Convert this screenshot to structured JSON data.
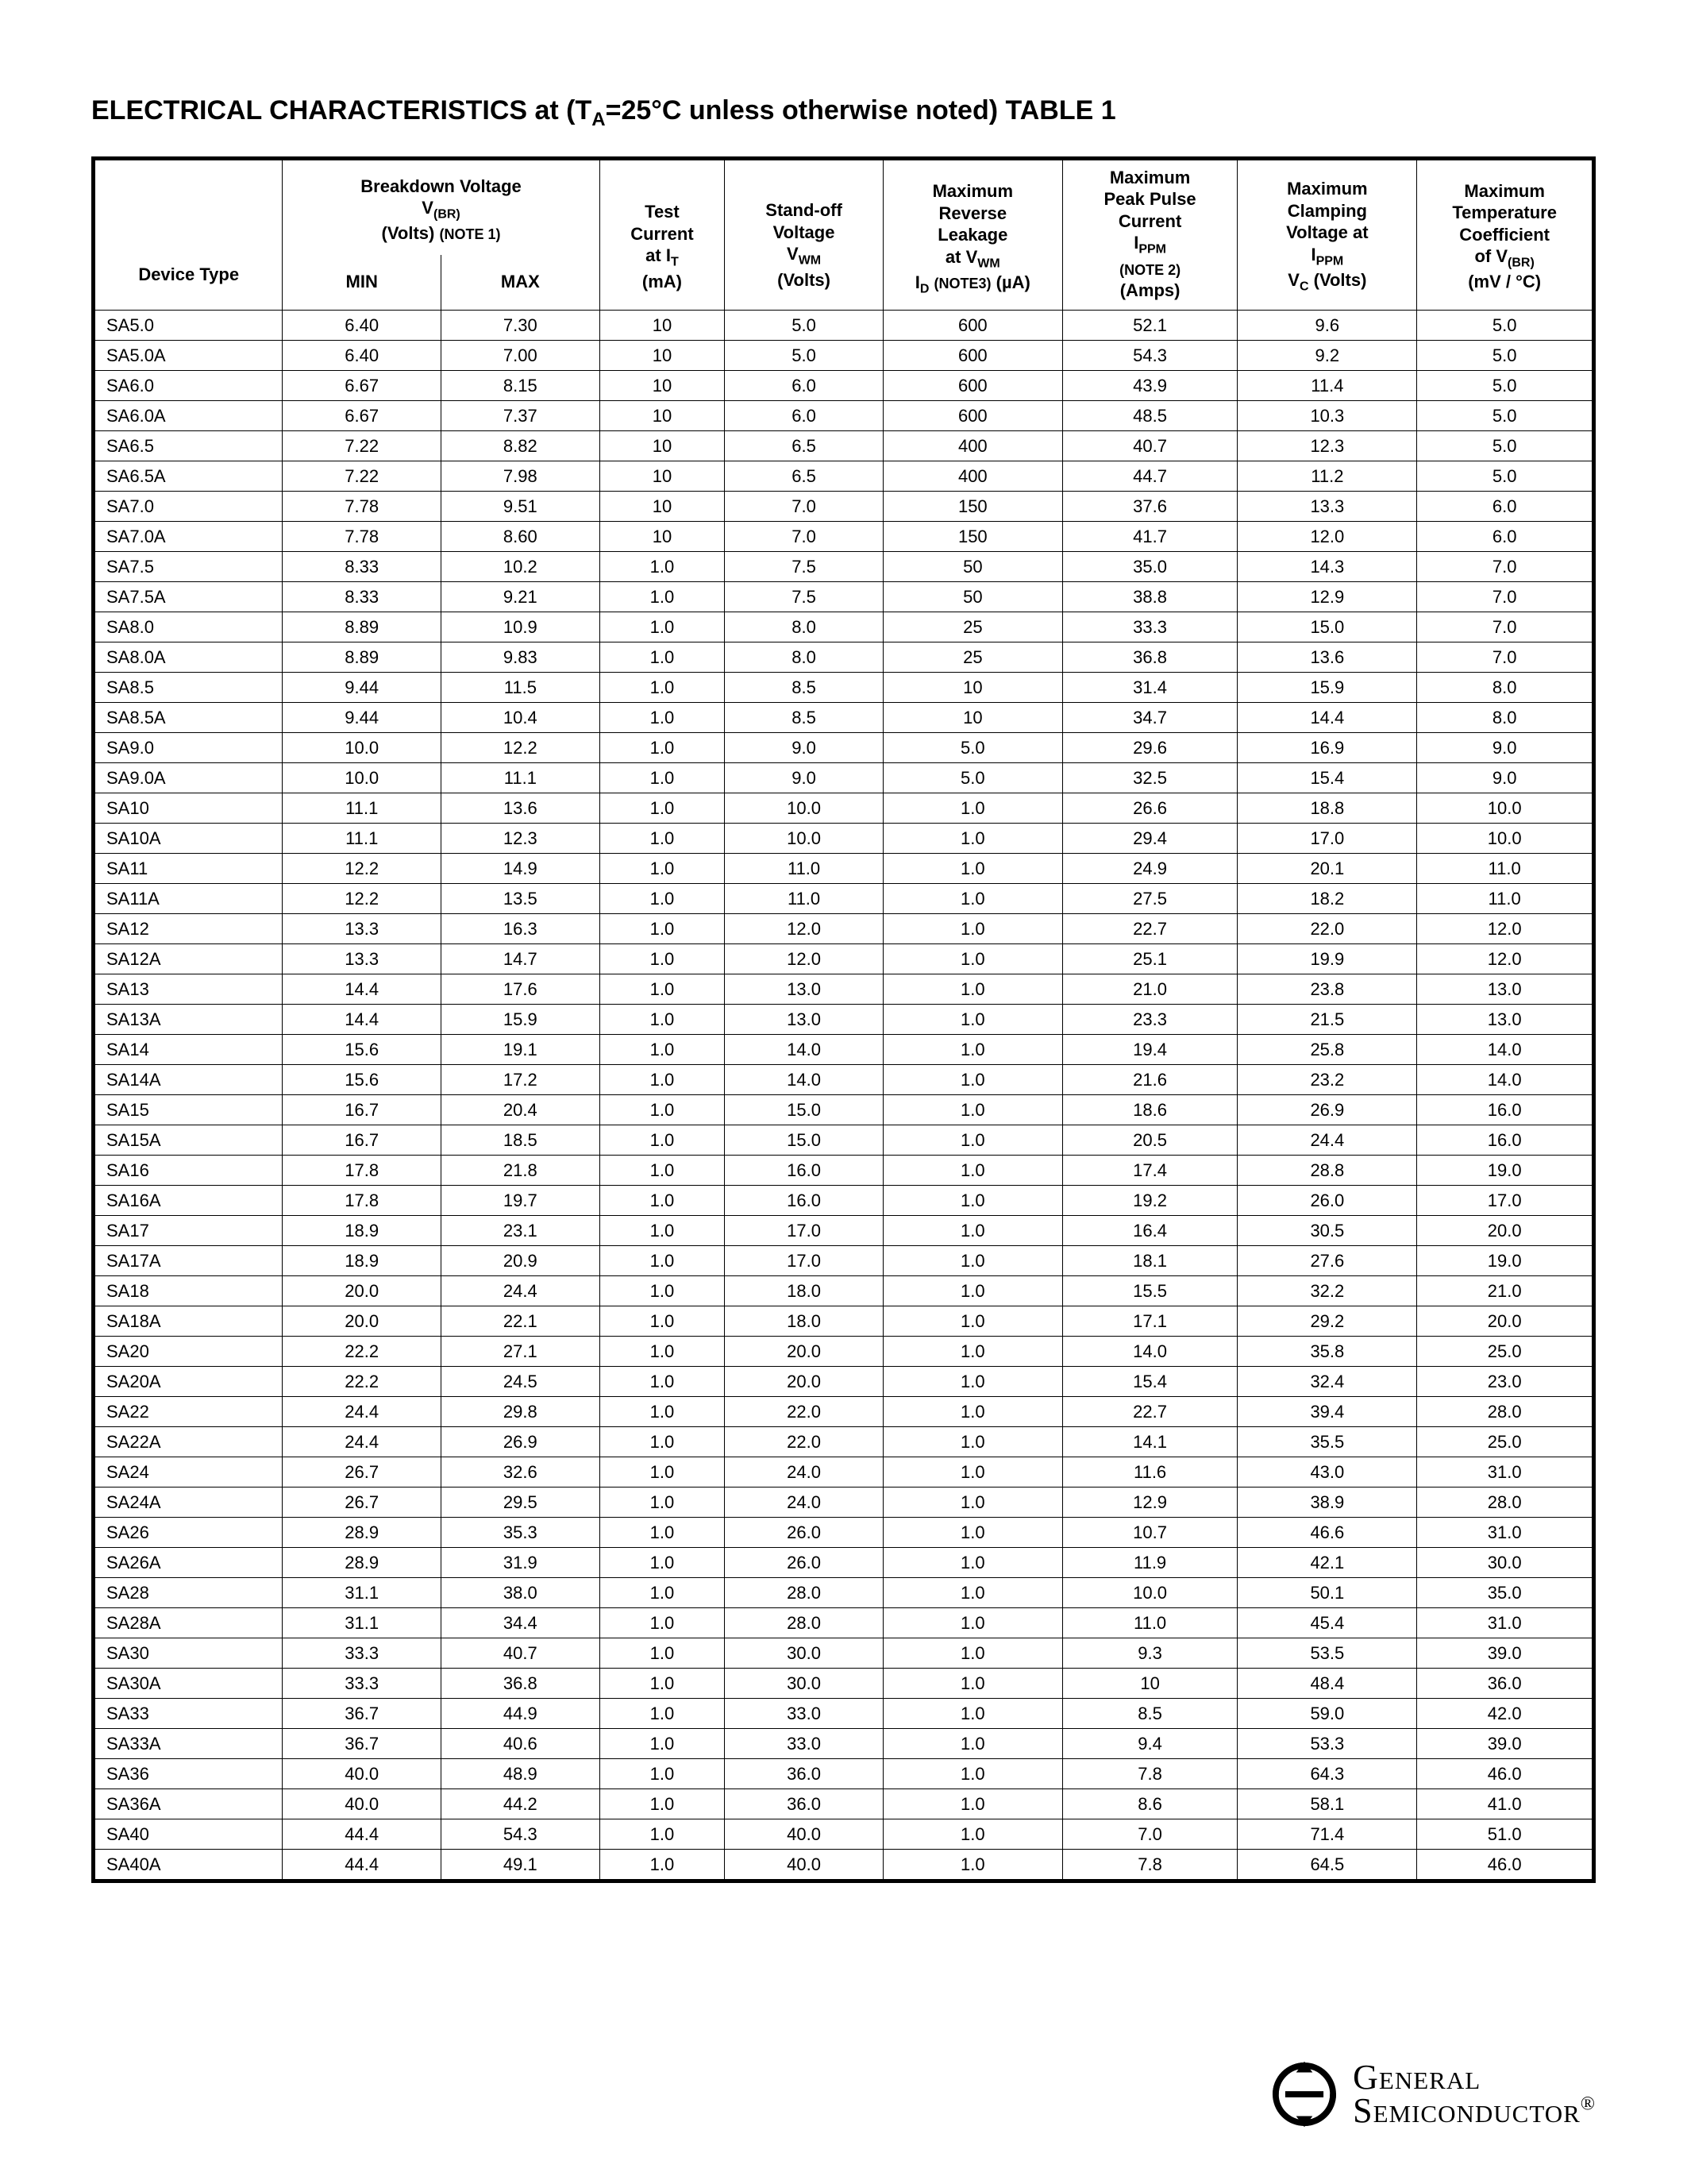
{
  "title": {
    "prefix": "ELECTRICAL CHARACTERISTICS at (T",
    "sub": "A",
    "eq": "=",
    "temp": "25°C unless otherwise noted) TABLE 1"
  },
  "header": {
    "device_type": "Device Type",
    "breakdown_top": "Breakdown Voltage",
    "breakdown_sub1": "V",
    "breakdown_sub1_sub": "(BR)",
    "breakdown_sub2": "(Volts)",
    "breakdown_note": "(NOTE 1)",
    "min": "MIN",
    "max": "MAX",
    "test_current_top": "Test\nCurrent\nat I",
    "test_current_sub": "T",
    "test_current_unit": "(mA)",
    "standoff_top": "Stand-off\nVoltage",
    "standoff_v": "V",
    "standoff_sub": "WM",
    "standoff_unit": "(Volts)",
    "leakage_top": "Maximum\nReverse\nLeakage",
    "leakage_at": "at V",
    "leakage_at_sub": "WM",
    "leakage_id": "I",
    "leakage_id_sub": "D",
    "leakage_note": "(NOTE3)",
    "leakage_unit": "(µA)",
    "ippm_top": "Maximum\nPeak Pulse\nCurrent",
    "ippm_i": "I",
    "ippm_sub": "PPM",
    "ippm_note": "(NOTE 2)",
    "ippm_unit": "(Amps)",
    "clamp_top": "Maximum\nClamping\nVoltage at",
    "clamp_i": "I",
    "clamp_sub": "PPM",
    "clamp_v": "V",
    "clamp_v_sub": "C",
    "clamp_unit": "(Volts)",
    "tc_top": "Maximum\nTemperature\nCoefficient",
    "tc_of": "of V",
    "tc_sub": "(BR)",
    "tc_unit": "(mV / °C)"
  },
  "columns": [
    "device",
    "min",
    "max",
    "it",
    "vwm",
    "id",
    "ippm",
    "vc",
    "tc"
  ],
  "rows": [
    [
      "SA5.0",
      "6.40",
      "7.30",
      "10",
      "5.0",
      "600",
      "52.1",
      "9.6",
      "5.0"
    ],
    [
      "SA5.0A",
      "6.40",
      "7.00",
      "10",
      "5.0",
      "600",
      "54.3",
      "9.2",
      "5.0"
    ],
    [
      "SA6.0",
      "6.67",
      "8.15",
      "10",
      "6.0",
      "600",
      "43.9",
      "11.4",
      "5.0"
    ],
    [
      "SA6.0A",
      "6.67",
      "7.37",
      "10",
      "6.0",
      "600",
      "48.5",
      "10.3",
      "5.0"
    ],
    [
      "SA6.5",
      "7.22",
      "8.82",
      "10",
      "6.5",
      "400",
      "40.7",
      "12.3",
      "5.0"
    ],
    [
      "SA6.5A",
      "7.22",
      "7.98",
      "10",
      "6.5",
      "400",
      "44.7",
      "11.2",
      "5.0"
    ],
    [
      "SA7.0",
      "7.78",
      "9.51",
      "10",
      "7.0",
      "150",
      "37.6",
      "13.3",
      "6.0"
    ],
    [
      "SA7.0A",
      "7.78",
      "8.60",
      "10",
      "7.0",
      "150",
      "41.7",
      "12.0",
      "6.0"
    ],
    [
      "SA7.5",
      "8.33",
      "10.2",
      "1.0",
      "7.5",
      "50",
      "35.0",
      "14.3",
      "7.0"
    ],
    [
      "SA7.5A",
      "8.33",
      "9.21",
      "1.0",
      "7.5",
      "50",
      "38.8",
      "12.9",
      "7.0"
    ],
    [
      "SA8.0",
      "8.89",
      "10.9",
      "1.0",
      "8.0",
      "25",
      "33.3",
      "15.0",
      "7.0"
    ],
    [
      "SA8.0A",
      "8.89",
      "9.83",
      "1.0",
      "8.0",
      "25",
      "36.8",
      "13.6",
      "7.0"
    ],
    [
      "SA8.5",
      "9.44",
      "11.5",
      "1.0",
      "8.5",
      "10",
      "31.4",
      "15.9",
      "8.0"
    ],
    [
      "SA8.5A",
      "9.44",
      "10.4",
      "1.0",
      "8.5",
      "10",
      "34.7",
      "14.4",
      "8.0"
    ],
    [
      "SA9.0",
      "10.0",
      "12.2",
      "1.0",
      "9.0",
      "5.0",
      "29.6",
      "16.9",
      "9.0"
    ],
    [
      "SA9.0A",
      "10.0",
      "11.1",
      "1.0",
      "9.0",
      "5.0",
      "32.5",
      "15.4",
      "9.0"
    ],
    [
      "SA10",
      "11.1",
      "13.6",
      "1.0",
      "10.0",
      "1.0",
      "26.6",
      "18.8",
      "10.0"
    ],
    [
      "SA10A",
      "11.1",
      "12.3",
      "1.0",
      "10.0",
      "1.0",
      "29.4",
      "17.0",
      "10.0"
    ],
    [
      "SA11",
      "12.2",
      "14.9",
      "1.0",
      "11.0",
      "1.0",
      "24.9",
      "20.1",
      "11.0"
    ],
    [
      "SA11A",
      "12.2",
      "13.5",
      "1.0",
      "11.0",
      "1.0",
      "27.5",
      "18.2",
      "11.0"
    ],
    [
      "SA12",
      "13.3",
      "16.3",
      "1.0",
      "12.0",
      "1.0",
      "22.7",
      "22.0",
      "12.0"
    ],
    [
      "SA12A",
      "13.3",
      "14.7",
      "1.0",
      "12.0",
      "1.0",
      "25.1",
      "19.9",
      "12.0"
    ],
    [
      "SA13",
      "14.4",
      "17.6",
      "1.0",
      "13.0",
      "1.0",
      "21.0",
      "23.8",
      "13.0"
    ],
    [
      "SA13A",
      "14.4",
      "15.9",
      "1.0",
      "13.0",
      "1.0",
      "23.3",
      "21.5",
      "13.0"
    ],
    [
      "SA14",
      "15.6",
      "19.1",
      "1.0",
      "14.0",
      "1.0",
      "19.4",
      "25.8",
      "14.0"
    ],
    [
      "SA14A",
      "15.6",
      "17.2",
      "1.0",
      "14.0",
      "1.0",
      "21.6",
      "23.2",
      "14.0"
    ],
    [
      "SA15",
      "16.7",
      "20.4",
      "1.0",
      "15.0",
      "1.0",
      "18.6",
      "26.9",
      "16.0"
    ],
    [
      "SA15A",
      "16.7",
      "18.5",
      "1.0",
      "15.0",
      "1.0",
      "20.5",
      "24.4",
      "16.0"
    ],
    [
      "SA16",
      "17.8",
      "21.8",
      "1.0",
      "16.0",
      "1.0",
      "17.4",
      "28.8",
      "19.0"
    ],
    [
      "SA16A",
      "17.8",
      "19.7",
      "1.0",
      "16.0",
      "1.0",
      "19.2",
      "26.0",
      "17.0"
    ],
    [
      "SA17",
      "18.9",
      "23.1",
      "1.0",
      "17.0",
      "1.0",
      "16.4",
      "30.5",
      "20.0"
    ],
    [
      "SA17A",
      "18.9",
      "20.9",
      "1.0",
      "17.0",
      "1.0",
      "18.1",
      "27.6",
      "19.0"
    ],
    [
      "SA18",
      "20.0",
      "24.4",
      "1.0",
      "18.0",
      "1.0",
      "15.5",
      "32.2",
      "21.0"
    ],
    [
      "SA18A",
      "20.0",
      "22.1",
      "1.0",
      "18.0",
      "1.0",
      "17.1",
      "29.2",
      "20.0"
    ],
    [
      "SA20",
      "22.2",
      "27.1",
      "1.0",
      "20.0",
      "1.0",
      "14.0",
      "35.8",
      "25.0"
    ],
    [
      "SA20A",
      "22.2",
      "24.5",
      "1.0",
      "20.0",
      "1.0",
      "15.4",
      "32.4",
      "23.0"
    ],
    [
      "SA22",
      "24.4",
      "29.8",
      "1.0",
      "22.0",
      "1.0",
      "22.7",
      "39.4",
      "28.0"
    ],
    [
      "SA22A",
      "24.4",
      "26.9",
      "1.0",
      "22.0",
      "1.0",
      "14.1",
      "35.5",
      "25.0"
    ],
    [
      "SA24",
      "26.7",
      "32.6",
      "1.0",
      "24.0",
      "1.0",
      "11.6",
      "43.0",
      "31.0"
    ],
    [
      "SA24A",
      "26.7",
      "29.5",
      "1.0",
      "24.0",
      "1.0",
      "12.9",
      "38.9",
      "28.0"
    ],
    [
      "SA26",
      "28.9",
      "35.3",
      "1.0",
      "26.0",
      "1.0",
      "10.7",
      "46.6",
      "31.0"
    ],
    [
      "SA26A",
      "28.9",
      "31.9",
      "1.0",
      "26.0",
      "1.0",
      "11.9",
      "42.1",
      "30.0"
    ],
    [
      "SA28",
      "31.1",
      "38.0",
      "1.0",
      "28.0",
      "1.0",
      "10.0",
      "50.1",
      "35.0"
    ],
    [
      "SA28A",
      "31.1",
      "34.4",
      "1.0",
      "28.0",
      "1.0",
      "11.0",
      "45.4",
      "31.0"
    ],
    [
      "SA30",
      "33.3",
      "40.7",
      "1.0",
      "30.0",
      "1.0",
      "9.3",
      "53.5",
      "39.0"
    ],
    [
      "SA30A",
      "33.3",
      "36.8",
      "1.0",
      "30.0",
      "1.0",
      "10",
      "48.4",
      "36.0"
    ],
    [
      "SA33",
      "36.7",
      "44.9",
      "1.0",
      "33.0",
      "1.0",
      "8.5",
      "59.0",
      "42.0"
    ],
    [
      "SA33A",
      "36.7",
      "40.6",
      "1.0",
      "33.0",
      "1.0",
      "9.4",
      "53.3",
      "39.0"
    ],
    [
      "SA36",
      "40.0",
      "48.9",
      "1.0",
      "36.0",
      "1.0",
      "7.8",
      "64.3",
      "46.0"
    ],
    [
      "SA36A",
      "40.0",
      "44.2",
      "1.0",
      "36.0",
      "1.0",
      "8.6",
      "58.1",
      "41.0"
    ],
    [
      "SA40",
      "44.4",
      "54.3",
      "1.0",
      "40.0",
      "1.0",
      "7.0",
      "71.4",
      "51.0"
    ],
    [
      "SA40A",
      "44.4",
      "49.1",
      "1.0",
      "40.0",
      "1.0",
      "7.8",
      "64.5",
      "46.0"
    ]
  ],
  "footer": {
    "line1": "General",
    "line2": "Semiconductor"
  }
}
